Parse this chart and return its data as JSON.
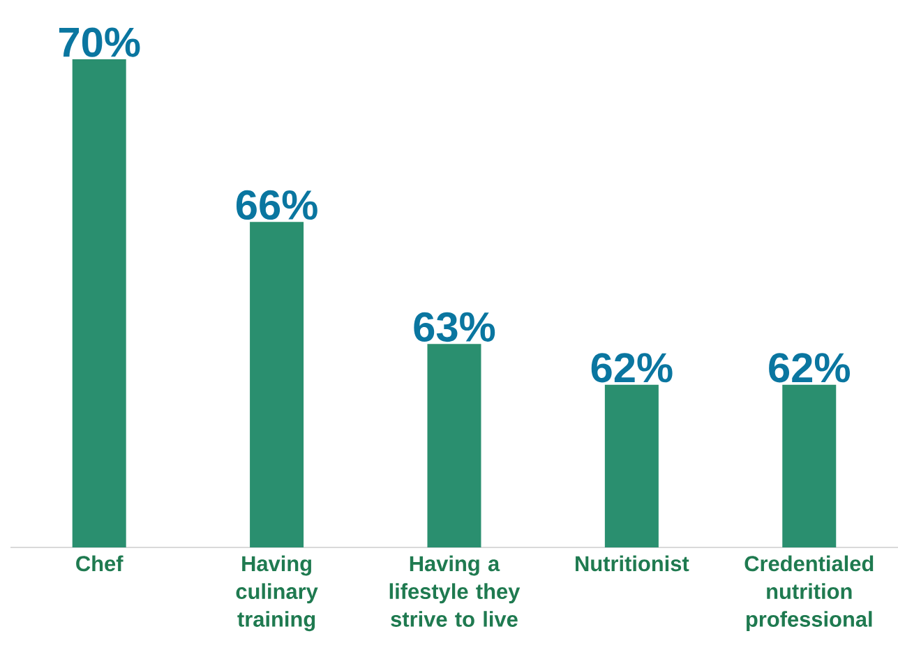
{
  "chart_data": {
    "type": "bar",
    "categories": [
      "Chef",
      "Having culinary training",
      "Having a lifestyle they strive to live",
      "Nutritionist",
      "Credentialed nutrition professional"
    ],
    "values": [
      70,
      66,
      63,
      62,
      62
    ],
    "value_labels": [
      "70%",
      "66%",
      "63%",
      "62%",
      "62%"
    ],
    "color": "#2a8f6f",
    "ylim": [
      58,
      70
    ],
    "tick_labels": "x"
  }
}
